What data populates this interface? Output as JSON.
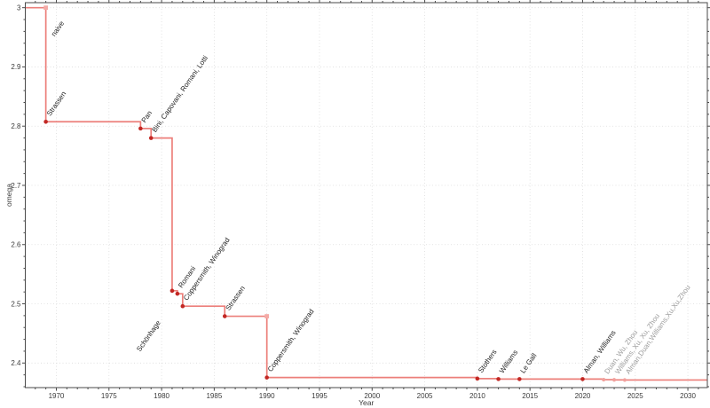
{
  "chart_data": {
    "type": "line",
    "title": "",
    "xlabel": "Year",
    "ylabel": "omega",
    "step_style": "post",
    "grid": true,
    "legend": "none",
    "xlim": [
      1967.05,
      2031.85
    ],
    "ylim": [
      2.3585,
      3.0085
    ],
    "x_major_ticks": [
      1970,
      1975,
      1980,
      1985,
      1990,
      1995,
      2000,
      2005,
      2010,
      2015,
      2020,
      2025,
      2030
    ],
    "x_minor_step": 1,
    "y_major_ticks": [
      2.4,
      2.5,
      2.6,
      2.7,
      2.8,
      2.9,
      3.0
    ],
    "y_tick_labels": [
      "2.4",
      "2.5",
      "2.6",
      "2.7",
      "2.8",
      "2.9",
      "3"
    ],
    "y_minor_step": 0.02,
    "start_omega": 3.0,
    "points": [
      {
        "year": 1969,
        "omega": 3.0,
        "label": "naive",
        "marker": "light",
        "label_offset": [
          10,
          33
        ]
      },
      {
        "year": 1969,
        "omega": 2.8074,
        "label": "Strassen",
        "marker": "dark"
      },
      {
        "year": 1978,
        "omega": 2.796,
        "label": "Pan",
        "marker": "dark"
      },
      {
        "year": 1979,
        "omega": 2.7799,
        "label": "Bini, Capovani, Romani, Lotti",
        "marker": "dark"
      },
      {
        "year": 1981,
        "omega": 2.522,
        "label": "Schönhage",
        "marker": "dark",
        "label_offset": [
          -36,
          69
        ]
      },
      {
        "year": 1981.5,
        "omega": 2.517,
        "label": "Romani",
        "marker": "dark"
      },
      {
        "year": 1982,
        "omega": 2.496,
        "label": "Coppersmith, Winograd",
        "marker": "dark"
      },
      {
        "year": 1986,
        "omega": 2.479,
        "label": "Strassen",
        "marker": "dark"
      },
      {
        "year": 1990,
        "omega": 2.3755,
        "label": "Coppersmith, Winograd",
        "marker": "dark",
        "corner_marker": true
      },
      {
        "year": 2010,
        "omega": 2.3737,
        "label": "Stothers",
        "marker": "dark"
      },
      {
        "year": 2012,
        "omega": 2.3729,
        "label": "Williams",
        "marker": "dark"
      },
      {
        "year": 2014,
        "omega": 2.3728639,
        "label": "Le Gall",
        "marker": "dark"
      },
      {
        "year": 2020,
        "omega": 2.3728596,
        "label": "Alman, Williams",
        "marker": "dark"
      },
      {
        "year": 2022,
        "omega": 2.371866,
        "label": "Duan, Wu, Zhou",
        "marker": "recent",
        "label_muted": true
      },
      {
        "year": 2023,
        "omega": 2.371552,
        "label": "Williams, Xu, Xu, Zhou",
        "marker": "recent",
        "label_muted": true
      },
      {
        "year": 2024,
        "omega": 2.371339,
        "label": "Alman,Duan,Williams,Xu,Xu,Zhou",
        "marker": "recent",
        "label_muted": true
      }
    ],
    "colors": {
      "line": "#ec7f7a",
      "point_dark": "#c22824",
      "point_light": "#f4aaa6",
      "point_recent": "#f1a09c",
      "label": "#222222",
      "label_muted": "#9c9c9c",
      "spine": "#4a4a4a",
      "tick": "#4a4a4a",
      "tick_label": "#3b3b3b",
      "grid": "#dcdcdc",
      "background": "#ffffff"
    },
    "label_rotation_deg": -55
  }
}
